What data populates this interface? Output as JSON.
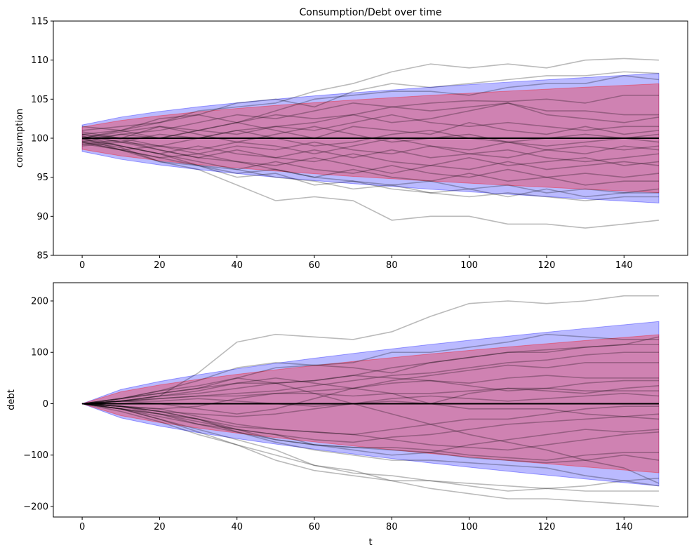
{
  "chart_data": [
    {
      "type": "line",
      "title": "Consumption/Debt over time",
      "xlabel": "",
      "ylabel": "consumption",
      "xlim": [
        -7.45,
        156.45
      ],
      "ylim": [
        85,
        115
      ],
      "xticks": [
        0,
        20,
        40,
        60,
        80,
        100,
        120,
        140
      ],
      "yticks": [
        85,
        90,
        95,
        100,
        105,
        110,
        115
      ],
      "grid": false,
      "colors": {
        "paths": "#808080",
        "mean": "#000000",
        "outer_band": "#0000ff",
        "inner_band": "#ff0000"
      },
      "t": [
        0,
        10,
        20,
        30,
        40,
        50,
        60,
        70,
        80,
        90,
        100,
        110,
        120,
        130,
        140,
        149
      ],
      "mean": [
        100,
        100,
        100,
        100,
        100,
        100,
        100,
        100,
        100,
        100,
        100,
        100,
        100,
        100,
        100,
        100
      ],
      "outer_band": {
        "upper": [
          101.7,
          102.7,
          103.42,
          104.02,
          104.53,
          105.0,
          105.42,
          105.82,
          106.18,
          106.53,
          106.86,
          107.18,
          107.48,
          107.77,
          108.05,
          108.3
        ],
        "lower": [
          98.3,
          97.3,
          96.58,
          95.98,
          95.47,
          95.0,
          94.58,
          94.18,
          93.82,
          93.47,
          93.14,
          92.82,
          92.52,
          92.23,
          91.95,
          91.7
        ]
      },
      "inner_band": {
        "upper": [
          101.43,
          102.27,
          102.87,
          103.38,
          103.81,
          104.2,
          104.55,
          104.89,
          105.19,
          105.49,
          105.76,
          106.03,
          106.28,
          106.53,
          106.76,
          106.97
        ],
        "lower": [
          98.57,
          97.73,
          97.13,
          96.62,
          96.19,
          95.8,
          95.45,
          95.11,
          94.81,
          94.51,
          94.24,
          93.97,
          93.72,
          93.47,
          93.24,
          93.03
        ]
      },
      "paths": [
        [
          100.5,
          101,
          102,
          103.5,
          104,
          104.5,
          106,
          107,
          108.5,
          109.5,
          109,
          109.5,
          109,
          110,
          110.2,
          110
        ],
        [
          101,
          101.5,
          102,
          103,
          104.5,
          105,
          104,
          106,
          107,
          106.5,
          107,
          107.5,
          108,
          108,
          108.5,
          108.3
        ],
        [
          100,
          101,
          102.5,
          103,
          102,
          103.5,
          105,
          105.5,
          106,
          106,
          105.5,
          106.5,
          107,
          107,
          108,
          107.5
        ],
        [
          99.5,
          100.5,
          101,
          102,
          103,
          102.5,
          103.5,
          104.5,
          104,
          104.5,
          104.8,
          104.7,
          105,
          104.5,
          105.5,
          105.5
        ],
        [
          100.5,
          100,
          101.5,
          101,
          102,
          103,
          102.5,
          103,
          104,
          103.5,
          104,
          104.5,
          103.5,
          103.5,
          103,
          103
        ],
        [
          99.8,
          100.5,
          100,
          101,
          100.5,
          101.5,
          102,
          103,
          102,
          102.5,
          103.5,
          104.5,
          103,
          102.5,
          102,
          102.7
        ],
        [
          100.2,
          99.5,
          100.5,
          100,
          101,
          101.5,
          101,
          102,
          103,
          102,
          101.5,
          102,
          101.5,
          101,
          101.5,
          101.5
        ],
        [
          101.5,
          101,
          100,
          101,
          102,
          101,
          100,
          101.5,
          101,
          100.5,
          102,
          101,
          100.5,
          101.5,
          100.5,
          101
        ],
        [
          100,
          100.8,
          101.5,
          100.5,
          99.5,
          100.5,
          101.5,
          100.5,
          99.5,
          100,
          100.5,
          99.5,
          100,
          100.5,
          100,
          100.5
        ],
        [
          99,
          99.5,
          99,
          100,
          101,
          100,
          99,
          99.5,
          100.5,
          101,
          100,
          99.5,
          99,
          99.5,
          100,
          99.5
        ],
        [
          100.8,
          100,
          99,
          98.5,
          99.5,
          99,
          98,
          99,
          100,
          99,
          98.5,
          99.5,
          98.5,
          99,
          98.5,
          99
        ],
        [
          99.5,
          98.5,
          99,
          98,
          99,
          98.5,
          99.5,
          98.5,
          98,
          99,
          98,
          97.5,
          98.5,
          98,
          99,
          98.5
        ],
        [
          100.3,
          99,
          98,
          99,
          98,
          97.5,
          98.5,
          97.5,
          98.5,
          97.5,
          98,
          98.5,
          97.5,
          97,
          97.5,
          98
        ],
        [
          99.2,
          99.8,
          98.5,
          97.5,
          98.5,
          97.5,
          97,
          98,
          97,
          96.5,
          97.5,
          96.5,
          97,
          97.5,
          96.5,
          97
        ],
        [
          100,
          98.5,
          97.5,
          98,
          97,
          96.5,
          97.5,
          96.5,
          95.5,
          96.5,
          96,
          97,
          96,
          96.5,
          97,
          96.5
        ],
        [
          99.8,
          99,
          98,
          97,
          96,
          97,
          96,
          95.5,
          96.5,
          95.5,
          95,
          96,
          95,
          95.5,
          95,
          95.5
        ],
        [
          100.5,
          99.5,
          98.5,
          97.5,
          97,
          96,
          95,
          96,
          95,
          94.5,
          95.5,
          94.5,
          95,
          94,
          94.5,
          94.5
        ],
        [
          99.3,
          98.5,
          97.5,
          96.5,
          95.5,
          96,
          95,
          94.5,
          94,
          94.5,
          93.5,
          94,
          93,
          93.5,
          93,
          93.5
        ],
        [
          100,
          99,
          98,
          96.5,
          96,
          95,
          94.5,
          93.5,
          94,
          93,
          93.5,
          92.5,
          93.5,
          92.5,
          93,
          93
        ],
        [
          99.6,
          98.8,
          97,
          96.5,
          95,
          95.5,
          94,
          94.5,
          93.5,
          93,
          92.5,
          93,
          92.5,
          92,
          92.5,
          92.5
        ],
        [
          99.5,
          98.5,
          97,
          96,
          94,
          92,
          92.5,
          92,
          89.5,
          90,
          90,
          89,
          89,
          88.5,
          89,
          89.5
        ]
      ]
    },
    {
      "type": "line",
      "title": "",
      "xlabel": "t",
      "ylabel": "debt",
      "xlim": [
        -7.45,
        156.45
      ],
      "ylim": [
        -220.5,
        235.5
      ],
      "xticks": [
        0,
        20,
        40,
        60,
        80,
        100,
        120,
        140
      ],
      "yticks": [
        -200,
        -100,
        0,
        100,
        200
      ],
      "ytick_labels": [
        "−200",
        "−100",
        "0",
        "100",
        "200"
      ],
      "grid": false,
      "colors": {
        "paths": "#808080",
        "mean": "#000000",
        "outer_band": "#0000ff",
        "inner_band": "#ff0000"
      },
      "t": [
        0,
        10,
        20,
        30,
        40,
        50,
        60,
        70,
        80,
        90,
        100,
        110,
        120,
        130,
        140,
        149
      ],
      "mean": [
        0,
        0,
        0,
        0,
        0,
        0,
        0,
        0,
        0,
        0,
        0,
        0,
        0,
        0,
        0,
        0
      ],
      "outer_band": {
        "upper": [
          0,
          27.6,
          43.4,
          56.4,
          68,
          78.6,
          88.5,
          97.8,
          106.7,
          115.3,
          123.5,
          131.4,
          139,
          146.5,
          153.6,
          160
        ],
        "lower": [
          0,
          -27.6,
          -43.4,
          -56.4,
          -68,
          -78.6,
          -88.5,
          -97.8,
          -106.7,
          -115.3,
          -123.5,
          -131.4,
          -139,
          -146.5,
          -153.6,
          -160
        ]
      },
      "inner_band": {
        "upper": [
          0,
          23.2,
          36.5,
          47.4,
          57.1,
          66,
          74.3,
          82.2,
          89.6,
          96.9,
          103.7,
          110.4,
          116.8,
          123.1,
          129,
          134.4
        ],
        "lower": [
          0,
          -23.2,
          -36.5,
          -47.4,
          -57.1,
          -66,
          -74.3,
          -82.2,
          -89.6,
          -96.9,
          -103.7,
          -110.4,
          -116.8,
          -123.1,
          -129,
          -134.4
        ]
      },
      "paths": [
        [
          0,
          5,
          15,
          60,
          120,
          135,
          130,
          125,
          140,
          170,
          195,
          200,
          195,
          200,
          210,
          210
        ],
        [
          0,
          10,
          25,
          45,
          70,
          80,
          75,
          80,
          100,
          100,
          110,
          120,
          135,
          130,
          125,
          125
        ],
        [
          0,
          10,
          20,
          30,
          50,
          70,
          75,
          70,
          60,
          80,
          90,
          100,
          105,
          110,
          115,
          130
        ],
        [
          0,
          5,
          15,
          20,
          30,
          40,
          45,
          55,
          70,
          80,
          90,
          100,
          100,
          110,
          115,
          115
        ],
        [
          0,
          5,
          10,
          15,
          20,
          25,
          35,
          45,
          55,
          60,
          70,
          80,
          85,
          95,
          100,
          100
        ],
        [
          0,
          5,
          0,
          -10,
          -20,
          -10,
          10,
          30,
          45,
          55,
          65,
          75,
          70,
          80,
          80,
          80
        ],
        [
          0,
          10,
          20,
          30,
          40,
          40,
          45,
          55,
          50,
          45,
          40,
          50,
          55,
          50,
          50,
          50
        ],
        [
          0,
          5,
          10,
          15,
          15,
          20,
          25,
          30,
          40,
          45,
          35,
          25,
          30,
          40,
          45,
          45
        ],
        [
          0,
          -5,
          -10,
          -5,
          10,
          20,
          20,
          15,
          20,
          20,
          25,
          30,
          25,
          20,
          30,
          35
        ],
        [
          0,
          5,
          5,
          10,
          5,
          0,
          -5,
          0,
          5,
          0,
          20,
          30,
          30,
          25,
          25,
          25
        ],
        [
          0,
          -5,
          -15,
          -20,
          -25,
          -20,
          -10,
          0,
          10,
          15,
          10,
          5,
          10,
          15,
          20,
          15
        ],
        [
          0,
          5,
          15,
          25,
          40,
          50,
          40,
          30,
          20,
          0,
          -10,
          -10,
          -10,
          -20,
          -25,
          -30
        ],
        [
          0,
          -5,
          -10,
          -25,
          -40,
          -50,
          -55,
          -60,
          -50,
          -40,
          -30,
          -30,
          -20,
          -10,
          -5,
          -5
        ],
        [
          0,
          -10,
          -20,
          -35,
          -50,
          -60,
          -70,
          -75,
          -65,
          -60,
          -50,
          -40,
          -35,
          -30,
          -25,
          -20
        ],
        [
          0,
          -5,
          -20,
          -40,
          -55,
          -70,
          -80,
          -90,
          -100,
          -95,
          -80,
          -70,
          -60,
          -50,
          -55,
          -50
        ],
        [
          0,
          -5,
          -15,
          -30,
          -45,
          -50,
          -55,
          -60,
          -70,
          -80,
          -85,
          -90,
          -80,
          -70,
          -60,
          -55
        ],
        [
          0,
          -10,
          -25,
          -40,
          -50,
          -60,
          -80,
          -85,
          -85,
          -90,
          -100,
          -105,
          -110,
          -100,
          -95,
          -95
        ],
        [
          0,
          -10,
          -20,
          -30,
          -55,
          -75,
          -90,
          -100,
          -110,
          -110,
          -115,
          -120,
          -125,
          -140,
          -150,
          -160
        ],
        [
          0,
          -5,
          -15,
          -30,
          -50,
          -70,
          -80,
          -85,
          -90,
          -95,
          -105,
          -110,
          -115,
          -110,
          -100,
          -110
        ],
        [
          0,
          -10,
          -30,
          -55,
          -80,
          -110,
          -130,
          -140,
          -150,
          -150,
          -155,
          -160,
          -165,
          -160,
          -150,
          -145
        ],
        [
          0,
          -15,
          -35,
          -60,
          -80,
          -100,
          -120,
          -135,
          -140,
          -150,
          -160,
          -170,
          -165,
          -170,
          -170,
          -170
        ],
        [
          0,
          -10,
          -30,
          -50,
          -70,
          -90,
          -120,
          -130,
          -150,
          -165,
          -175,
          -185,
          -185,
          -190,
          -195,
          -200
        ],
        [
          0,
          10,
          25,
          35,
          50,
          40,
          20,
          0,
          -20,
          -40,
          -60,
          -75,
          -90,
          -110,
          -125,
          -155
        ]
      ]
    }
  ]
}
